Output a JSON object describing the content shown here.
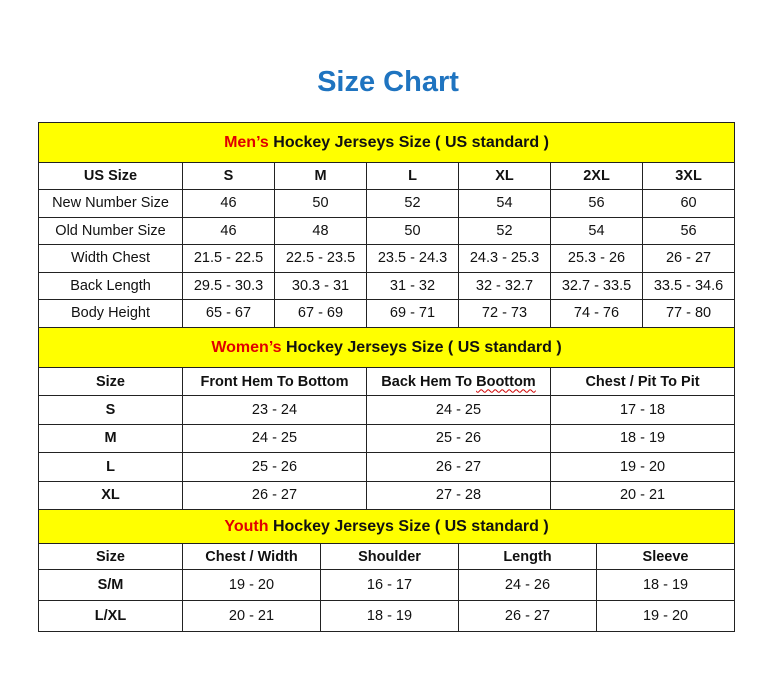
{
  "title": "Size Chart",
  "colors": {
    "title": "#1f74c0",
    "banner": "#ffff00",
    "highlight": "#e00000"
  },
  "men": {
    "banner_highlight": "Men’s",
    "banner_rest": " Hockey Jerseys Size ( US standard )",
    "header": [
      "US Size",
      "S",
      "M",
      "L",
      "XL",
      "2XL",
      "3XL"
    ],
    "rows": [
      [
        "New Number Size",
        "46",
        "50",
        "52",
        "54",
        "56",
        "60"
      ],
      [
        "Old Number Size",
        "46",
        "48",
        "50",
        "52",
        "54",
        "56"
      ],
      [
        "Width Chest",
        "21.5 - 22.5",
        "22.5 - 23.5",
        "23.5 - 24.3",
        "24.3 - 25.3",
        "25.3 - 26",
        "26 - 27"
      ],
      [
        "Back Length",
        "29.5 - 30.3",
        "30.3 - 31",
        "31 - 32",
        "32 - 32.7",
        "32.7 - 33.5",
        "33.5 - 34.6"
      ],
      [
        "Body Height",
        "65 - 67",
        "67 - 69",
        "69 - 71",
        "72 - 73",
        "74 - 76",
        "77 - 80"
      ]
    ]
  },
  "women": {
    "banner_highlight": "Women’s",
    "banner_rest": " Hockey Jerseys Size ( US standard )",
    "header": [
      "Size",
      "Front Hem To Bottom",
      "Back Hem To Boottom",
      "Chest / Pit To Pit"
    ],
    "rows": [
      [
        "S",
        "23 - 24",
        "24 - 25",
        "17 - 18"
      ],
      [
        "M",
        "24 - 25",
        "25 - 26",
        "18 - 19"
      ],
      [
        "L",
        "25 - 26",
        "26 - 27",
        "19 - 20"
      ],
      [
        "XL",
        "26 - 27",
        "27 - 28",
        "20 - 21"
      ]
    ]
  },
  "youth": {
    "banner_highlight": "Youth",
    "banner_rest": " Hockey Jerseys Size ( US standard )",
    "header": [
      "Size",
      "Chest / Width",
      "Shoulder",
      "Length",
      "Sleeve"
    ],
    "rows": [
      [
        "S/M",
        "19 - 20",
        "16 - 17",
        "24 - 26",
        "18 - 19"
      ],
      [
        "L/XL",
        "20 - 21",
        "18 - 19",
        "26 - 27",
        "19 - 20"
      ]
    ]
  }
}
